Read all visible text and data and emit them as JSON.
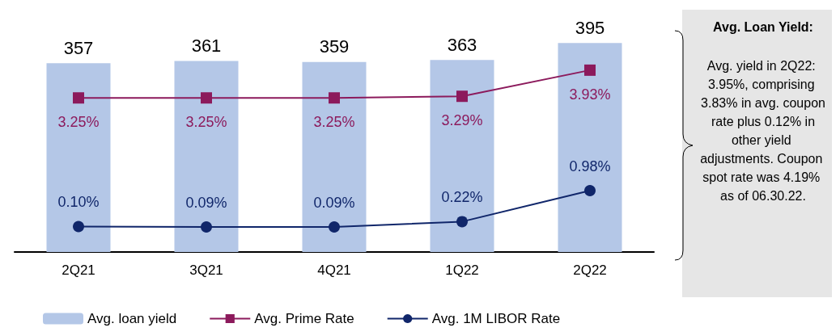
{
  "chart_data": {
    "type": "bar",
    "categories": [
      "2Q21",
      "3Q21",
      "4Q21",
      "1Q22",
      "2Q22"
    ],
    "series": [
      {
        "name": "Avg. loan yield",
        "color": "#b4c7e7",
        "values": [
          357,
          361,
          359,
          363,
          395
        ],
        "value_labels": [
          "357",
          "361",
          "359",
          "363",
          "395"
        ]
      },
      {
        "name": "Avg. Prime Rate",
        "type": "line",
        "axis": "y2",
        "marker": "square",
        "color": "#8c1a5c",
        "values": [
          3.25,
          3.25,
          3.25,
          3.29,
          3.93
        ],
        "value_labels": [
          "3.25%",
          "3.25%",
          "3.25%",
          "3.29%",
          "3.93%"
        ]
      },
      {
        "name": "Avg. 1M LIBOR Rate",
        "type": "line",
        "axis": "y2",
        "marker": "circle",
        "color": "#10266a",
        "values": [
          0.1,
          0.09,
          0.09,
          0.22,
          0.98
        ],
        "value_labels": [
          "0.10%",
          "0.09%",
          "0.09%",
          "0.22%",
          "0.98%"
        ]
      }
    ],
    "annotations": [
      "Avg. Loan Yield:",
      "Avg. yield in 2Q22: 3.95%, comprising 3.83% in avg. coupon rate plus 0.12% in other yield adjustments. Coupon spot rate was 4.19% as of 06.30.22."
    ],
    "legend": "bottom left",
    "grid": false
  }
}
